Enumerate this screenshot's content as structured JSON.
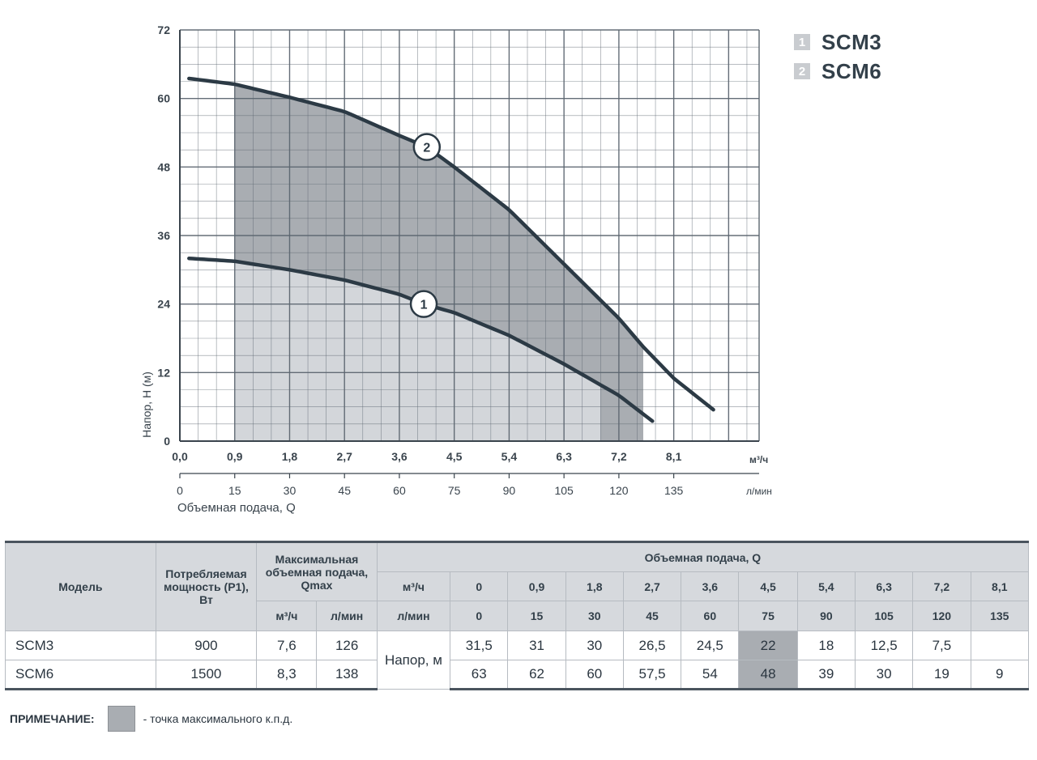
{
  "chart_data": {
    "type": "line",
    "title": "",
    "ylabel": "Напор, Н (м)",
    "xlabel": "Объемная подача, Q",
    "x_unit_primary": "м³/ч",
    "x_unit_secondary": "л/мин",
    "xlim": [
      0,
      9.5
    ],
    "ylim": [
      0,
      72
    ],
    "yticks": [
      0,
      12,
      24,
      36,
      48,
      60,
      72
    ],
    "xticks_m3h": [
      "0,0",
      "0,9",
      "1,8",
      "2,7",
      "3,6",
      "4,5",
      "5,4",
      "6,3",
      "7,2",
      "8,1"
    ],
    "xticks_lmin": [
      "0",
      "15",
      "30",
      "45",
      "60",
      "75",
      "90",
      "105",
      "120",
      "135"
    ],
    "grid": true,
    "legend_position": "top-right",
    "series": [
      {
        "name": "SCM3",
        "marker_label": "1",
        "x": [
          0.15,
          0.9,
          1.8,
          2.7,
          3.6,
          4.0,
          4.5,
          5.4,
          6.3,
          7.2,
          7.75
        ],
        "y": [
          32,
          31.5,
          30,
          28.2,
          25.7,
          24,
          22.5,
          18.5,
          13.5,
          8,
          3.5
        ],
        "shaded_range": [
          0.9,
          6.9
        ]
      },
      {
        "name": "SCM6",
        "marker_label": "2",
        "x": [
          0.15,
          0.9,
          1.8,
          2.7,
          3.6,
          4.05,
          4.5,
          5.4,
          6.3,
          7.2,
          7.6,
          8.1,
          8.75
        ],
        "y": [
          63.5,
          62.5,
          60.2,
          57.7,
          53.5,
          51.5,
          48,
          40.5,
          31,
          21.5,
          16.5,
          11,
          5.5
        ],
        "shaded_range": [
          0.9,
          7.6
        ]
      }
    ]
  },
  "table": {
    "headers": {
      "model": "Модель",
      "power": "Потребляемая мощность (P1), Вт",
      "qmax": "Максимальная объемная подача, Qmax",
      "q": "Объемная подача, Q",
      "m3h": "м³/ч",
      "lmin": "л/мин"
    },
    "flow_m3h": [
      "0",
      "0,9",
      "1,8",
      "2,7",
      "3,6",
      "4,5",
      "5,4",
      "6,3",
      "7,2",
      "8,1"
    ],
    "flow_lmin": [
      "0",
      "15",
      "30",
      "45",
      "60",
      "75",
      "90",
      "105",
      "120",
      "135"
    ],
    "head_label": "Напор, м",
    "rows": [
      {
        "model": "SCM3",
        "power": "900",
        "qmax_m3h": "7,6",
        "qmax_lmin": "126",
        "heads": [
          "31,5",
          "31",
          "30",
          "26,5",
          "24,5",
          "22",
          "18",
          "12,5",
          "7,5",
          ""
        ]
      },
      {
        "model": "SCM6",
        "power": "1500",
        "qmax_m3h": "8,3",
        "qmax_lmin": "138",
        "heads": [
          "63",
          "62",
          "60",
          "57,5",
          "54",
          "48",
          "39",
          "30",
          "19",
          "9"
        ]
      }
    ],
    "highlight_column": 5
  },
  "note": {
    "label": "ПРИМЕЧАНИЕ:",
    "text": "- точка максимального к.п.д."
  },
  "colors": {
    "grid": "#5c6670",
    "curve": "#2c3a45",
    "fill_dark": "#a9adb2",
    "fill_light": "#d3d6da",
    "highlight": "#a9adb2"
  }
}
